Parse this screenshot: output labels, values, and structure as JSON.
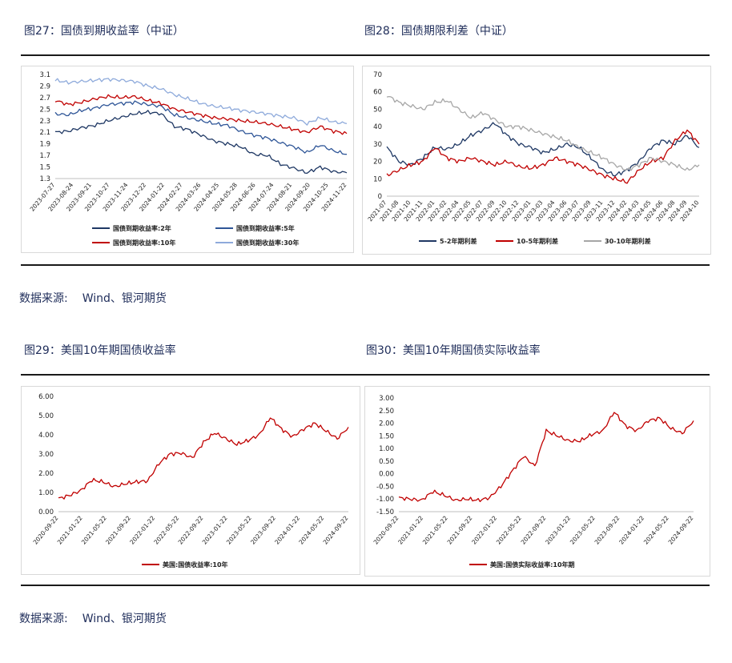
{
  "figures": {
    "fig27_title": "图27：国债到期收益率（中证）",
    "fig28_title": "图28：国债期限利差（中证）",
    "fig29_title": "图29：美国10年期国债收益率",
    "fig30_title": "图30：美国10年期国债实际收益率"
  },
  "sources": {
    "top_label": "数据来源:",
    "top_value": "Wind、银河期货",
    "bottom_label": "数据来源:",
    "bottom_value": "Wind、银河期货"
  },
  "chart_data": [
    {
      "id": "fig27",
      "type": "line",
      "title": "",
      "ylim": [
        1.3,
        3.1
      ],
      "yticks": [
        1.3,
        1.5,
        1.7,
        1.9,
        2.1,
        2.3,
        2.5,
        2.7,
        2.9,
        3.1
      ],
      "x_tick_labels": [
        "2023-07-27",
        "2023-08-24",
        "2023-09-21",
        "2023-10-27",
        "2023-11-24",
        "2023-12-22",
        "2024-01-22",
        "2024-02-27",
        "2024-03-26",
        "2024-04-25",
        "2024-05-28",
        "2024-06-26",
        "2024-07-24",
        "2024-08-21",
        "2024-09-20",
        "2024-10-25",
        "2024-11-22"
      ],
      "grid": false,
      "legend_position": "bottom",
      "series": [
        {
          "name": "国债到期收益率:2年",
          "color": "#1f3864",
          "values": [
            2.1,
            2.12,
            2.18,
            2.22,
            2.3,
            2.36,
            2.42,
            2.45,
            2.42,
            2.2,
            2.15,
            2.05,
            1.95,
            1.9,
            1.85,
            1.72,
            1.7,
            1.55,
            1.48,
            1.4,
            1.5,
            1.42,
            1.4
          ]
        },
        {
          "name": "国债到期收益率:5年",
          "color": "#2e5597",
          "values": [
            2.42,
            2.4,
            2.48,
            2.52,
            2.58,
            2.6,
            2.62,
            2.58,
            2.55,
            2.4,
            2.35,
            2.3,
            2.25,
            2.22,
            2.12,
            2.05,
            2.0,
            1.92,
            1.85,
            1.75,
            1.88,
            1.78,
            1.72
          ]
        },
        {
          "name": "国债到期收益率:10年",
          "color": "#c00000",
          "values": [
            2.65,
            2.58,
            2.62,
            2.68,
            2.72,
            2.7,
            2.72,
            2.65,
            2.6,
            2.5,
            2.45,
            2.4,
            2.35,
            2.33,
            2.3,
            2.28,
            2.25,
            2.2,
            2.15,
            2.1,
            2.2,
            2.12,
            2.08
          ]
        },
        {
          "name": "国债到期收益率:30年",
          "color": "#8eaadb",
          "values": [
            3.0,
            2.96,
            2.98,
            3.0,
            3.02,
            3.0,
            2.98,
            2.9,
            2.85,
            2.75,
            2.68,
            2.6,
            2.55,
            2.52,
            2.48,
            2.45,
            2.42,
            2.38,
            2.35,
            2.25,
            2.35,
            2.28,
            2.25
          ]
        }
      ]
    },
    {
      "id": "fig28",
      "type": "line",
      "title": "",
      "ylim": [
        0,
        70
      ],
      "yticks": [
        0,
        10,
        20,
        30,
        40,
        50,
        60,
        70
      ],
      "x_tick_labels": [
        "2021-07",
        "2021-08",
        "2021-10",
        "2021-11",
        "2022-01",
        "2022-02",
        "2022-04",
        "2022-05",
        "2022-07",
        "2022-09",
        "2022-10",
        "2022-12",
        "2023-01",
        "2023-03",
        "2023-04",
        "2023-06",
        "2023-07",
        "2023-09",
        "2023-11",
        "2023-12",
        "2024-02",
        "2024-03",
        "2024-05",
        "2024-06",
        "2024-08",
        "2024-09",
        "2024-10"
      ],
      "grid": false,
      "legend_position": "bottom",
      "series": [
        {
          "name": "5-2年期利差",
          "color": "#1f3864",
          "values": [
            28,
            20,
            18,
            22,
            28,
            27,
            30,
            35,
            38,
            42,
            35,
            30,
            28,
            25,
            27,
            30,
            28,
            22,
            15,
            12,
            15,
            20,
            28,
            32,
            30,
            35,
            28
          ]
        },
        {
          "name": "10-5年期利差",
          "color": "#c00000",
          "values": [
            12,
            15,
            18,
            20,
            28,
            22,
            20,
            22,
            20,
            18,
            20,
            17,
            16,
            18,
            22,
            20,
            18,
            15,
            12,
            10,
            8,
            15,
            20,
            22,
            32,
            38,
            30
          ]
        },
        {
          "name": "30-10年期利差",
          "color": "#a6a6a6",
          "values": [
            58,
            54,
            52,
            50,
            54,
            55,
            50,
            45,
            48,
            44,
            40,
            40,
            38,
            36,
            34,
            32,
            28,
            25,
            22,
            18,
            15,
            18,
            22,
            20,
            18,
            15,
            18
          ]
        }
      ]
    },
    {
      "id": "fig29",
      "type": "line",
      "title": "",
      "ylim": [
        0,
        6
      ],
      "yticks": [
        "0.00",
        "1.00",
        "2.00",
        "3.00",
        "4.00",
        "5.00",
        "6.00"
      ],
      "x_tick_labels": [
        "2020-09-22",
        "2021-01-22",
        "2021-05-22",
        "2021-09-22",
        "2022-01-22",
        "2022-05-22",
        "2022-09-22",
        "2023-01-22",
        "2023-05-22",
        "2023-09-22",
        "2024-01-22",
        "2024-05-22",
        "2024-09-22"
      ],
      "grid": false,
      "legend_position": "bottom",
      "series": [
        {
          "name": "美国:国债收益率:10年",
          "color": "#c00000",
          "values": [
            0.68,
            0.85,
            1.1,
            1.65,
            1.55,
            1.3,
            1.45,
            1.55,
            1.6,
            2.5,
            3.0,
            3.05,
            2.8,
            3.6,
            4.1,
            3.8,
            3.5,
            3.7,
            4.0,
            4.9,
            4.3,
            3.9,
            4.3,
            4.6,
            4.2,
            3.8,
            4.4
          ]
        }
      ]
    },
    {
      "id": "fig30",
      "type": "line",
      "title": "",
      "ylim": [
        -1.5,
        3.0
      ],
      "yticks": [
        "-1.50",
        "-1.00",
        "-0.50",
        "0.00",
        "0.50",
        "1.00",
        "1.50",
        "2.00",
        "2.50",
        "3.00"
      ],
      "x_tick_labels": [
        "2020-09-22",
        "2021-01-22",
        "2021-05-22",
        "2021-09-22",
        "2022-01-22",
        "2022-05-22",
        "2022-09-22",
        "2023-01-22",
        "2023-05-22",
        "2023-09-22",
        "2024-01-22",
        "2024-05-22",
        "2024-09-22"
      ],
      "grid": false,
      "legend_position": "bottom",
      "series": [
        {
          "name": "美国:国债实际收益率:10年期",
          "color": "#c00000",
          "values": [
            -0.95,
            -1.0,
            -1.05,
            -0.7,
            -0.85,
            -1.05,
            -1.0,
            -1.05,
            -0.95,
            -0.5,
            0.1,
            0.7,
            0.3,
            1.7,
            1.5,
            1.3,
            1.3,
            1.55,
            1.7,
            2.45,
            1.9,
            1.7,
            2.1,
            2.2,
            1.8,
            1.6,
            2.1
          ]
        }
      ]
    }
  ]
}
